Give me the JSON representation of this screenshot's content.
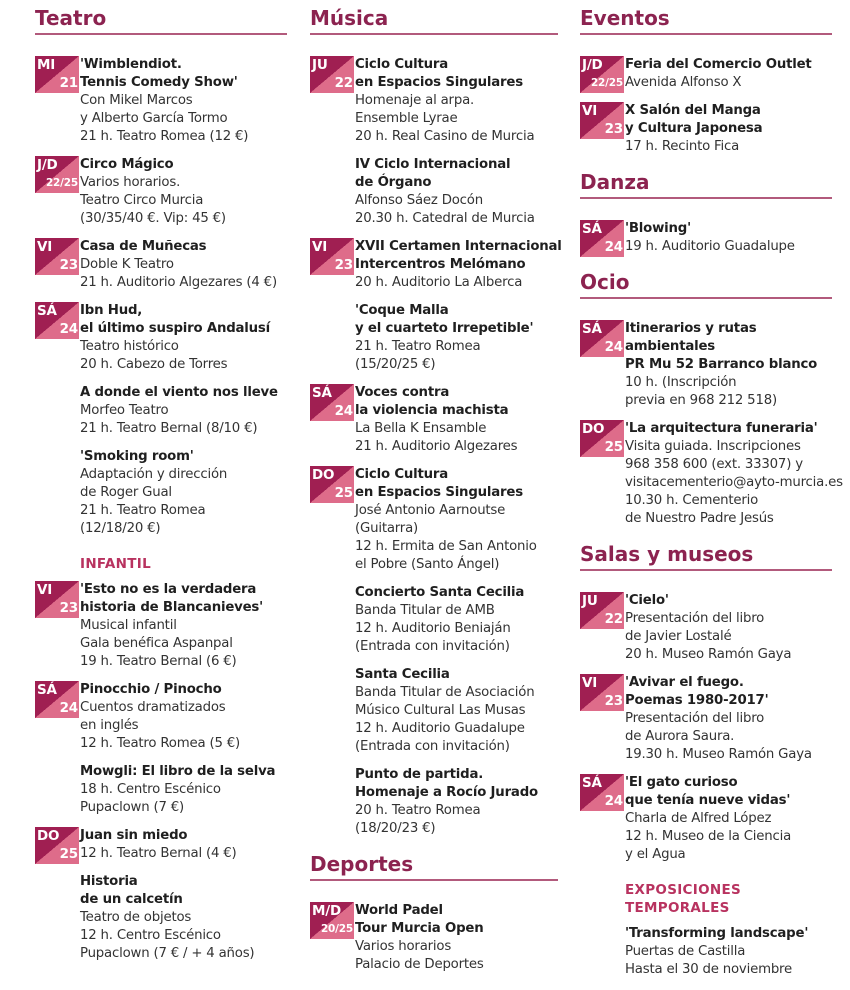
{
  "colors": {
    "heading": "#8c2350",
    "badge_dark": "#a01f52",
    "badge_light": "#de6c8a",
    "subheading": "#b8325f"
  },
  "columns": [
    {
      "sections": [
        {
          "heading": "Teatro",
          "type": "main",
          "items": [
            {
              "badge": {
                "day": "MI",
                "num": "21"
              },
              "title": [
                "'Wimblendiot.",
                "Tennis Comedy Show'"
              ],
              "details": [
                "Con Mikel Marcos",
                "y Alberto García Tormo",
                "21 h. Teatro Romea  (12 €)"
              ]
            },
            {
              "badge": {
                "day": "J/D",
                "num": "22/25"
              },
              "title": [
                "Circo Mágico"
              ],
              "details": [
                "Varios horarios.",
                "Teatro Circo Murcia",
                "(30/35/40 €. Vip: 45 €)"
              ]
            },
            {
              "badge": {
                "day": "VI",
                "num": "23"
              },
              "title": [
                "Casa de Muñecas"
              ],
              "details": [
                "Doble K Teatro",
                "21 h. Auditorio Algezares (4 €)"
              ]
            },
            {
              "badge": {
                "day": "SÁ",
                "num": "24"
              },
              "title": [
                "Ibn Hud,",
                "el último suspiro Andalusí"
              ],
              "details": [
                "Teatro histórico",
                "20 h. Cabezo de Torres"
              ]
            },
            {
              "title": [
                "A donde el viento nos lleve"
              ],
              "details": [
                "Morfeo Teatro",
                "21 h. Teatro Bernal  (8/10 €)"
              ]
            },
            {
              "title": [
                "'Smoking room'"
              ],
              "details": [
                "Adaptación y dirección",
                "de Roger Gual",
                "21 h. Teatro Romea",
                "(12/18/20 €)"
              ]
            }
          ]
        },
        {
          "heading": "INFANTIL",
          "type": "sub",
          "items": [
            {
              "badge": {
                "day": "VI",
                "num": "23"
              },
              "title": [
                "'Esto no es la verdadera",
                "historia de Blancanieves'"
              ],
              "details": [
                "Musical infantil",
                "Gala benéfica Aspanpal",
                "19 h. Teatro Bernal  (6 €)"
              ]
            },
            {
              "badge": {
                "day": "SÁ",
                "num": "24"
              },
              "title": [
                "Pinocchio / Pinocho"
              ],
              "details": [
                "Cuentos dramatizados",
                "en inglés",
                "12 h. Teatro Romea  (5 €)"
              ]
            },
            {
              "title": [
                "Mowgli: El libro de la selva"
              ],
              "details": [
                "18 h. Centro Escénico",
                "Pupaclown  (7 €)"
              ]
            },
            {
              "badge": {
                "day": "DO",
                "num": "25"
              },
              "title": [
                "Juan sin miedo"
              ],
              "details": [
                "12 h. Teatro Bernal  (4 €)"
              ]
            },
            {
              "title": [
                "Historia",
                "de un calcetín"
              ],
              "details": [
                "Teatro de objetos",
                "12 h. Centro Escénico",
                "Pupaclown  (7 € / + 4 años)"
              ]
            }
          ]
        }
      ]
    },
    {
      "sections": [
        {
          "heading": "Música",
          "type": "main",
          "items": [
            {
              "badge": {
                "day": "JU",
                "num": "22"
              },
              "title": [
                "Ciclo Cultura",
                "en Espacios Singulares"
              ],
              "details": [
                "Homenaje al arpa.",
                "Ensemble Lyrae",
                "20 h. Real Casino de Murcia"
              ]
            },
            {
              "title": [
                "IV Ciclo Internacional",
                "de Órgano"
              ],
              "details": [
                "Alfonso Sáez Docón",
                "20.30 h. Catedral de Murcia"
              ]
            },
            {
              "badge": {
                "day": "VI",
                "num": "23"
              },
              "title": [
                "XVII Certamen Internacional",
                "Intercentros Melómano"
              ],
              "details": [
                "20 h. Auditorio La Alberca"
              ]
            },
            {
              "title": [
                "'Coque Malla",
                "y el cuarteto Irrepetible'"
              ],
              "details": [
                "21 h. Teatro Romea",
                "(15/20/25 €)"
              ]
            },
            {
              "badge": {
                "day": "SÁ",
                "num": "24"
              },
              "title": [
                "Voces contra",
                "la violencia machista"
              ],
              "details": [
                "La Bella K Ensamble",
                "21 h. Auditorio Algezares"
              ]
            },
            {
              "badge": {
                "day": "DO",
                "num": "25"
              },
              "title": [
                "Ciclo Cultura",
                "en Espacios Singulares"
              ],
              "details": [
                "José Antonio Aarnoutse",
                "(Guitarra)",
                "12 h. Ermita de San Antonio",
                "el Pobre (Santo Ángel)"
              ]
            },
            {
              "title": [
                "Concierto Santa Cecilia"
              ],
              "details": [
                "Banda Titular de AMB",
                "12 h. Auditorio Beniaján",
                "(Entrada con invitación)"
              ]
            },
            {
              "title": [
                "Santa Cecilia"
              ],
              "details": [
                "Banda Titular de Asociación",
                "Músico Cultural Las Musas",
                "12 h. Auditorio Guadalupe",
                "(Entrada con invitación)"
              ]
            },
            {
              "title": [
                "Punto de partida.",
                "Homenaje a Rocío Jurado"
              ],
              "details": [
                "20 h. Teatro Romea",
                "(18/20/23 €)"
              ]
            }
          ]
        },
        {
          "heading": "Deportes",
          "type": "main",
          "items": [
            {
              "badge": {
                "day": "M/D",
                "num": "20/25"
              },
              "title": [
                "World Padel",
                "Tour Murcia Open"
              ],
              "details": [
                "Varios horarios",
                "Palacio de Deportes"
              ]
            }
          ]
        }
      ]
    },
    {
      "sections": [
        {
          "heading": "Eventos",
          "type": "main",
          "items": [
            {
              "badge": {
                "day": "J/D",
                "num": "22/25"
              },
              "title": [
                "Feria del Comercio Outlet"
              ],
              "details": [
                "Avenida Alfonso X"
              ]
            },
            {
              "badge": {
                "day": "VI",
                "num": "23"
              },
              "title": [
                "X Salón del Manga",
                "y Cultura Japonesa"
              ],
              "details": [
                "17 h. Recinto Fica"
              ]
            }
          ]
        },
        {
          "heading": "Danza",
          "type": "main",
          "items": [
            {
              "badge": {
                "day": "SÁ",
                "num": "24"
              },
              "title": [
                "'Blowing'"
              ],
              "details": [
                "19 h. Auditorio Guadalupe"
              ]
            }
          ]
        },
        {
          "heading": "Ocio",
          "type": "main",
          "items": [
            {
              "badge": {
                "day": "SÁ",
                "num": "24"
              },
              "title": [
                "Itinerarios y rutas",
                "ambientales",
                "PR Mu 52  Barranco blanco"
              ],
              "details": [
                "10 h. (Inscripción",
                "previa en 968 212 518)"
              ]
            },
            {
              "badge": {
                "day": "DO",
                "num": "25"
              },
              "title": [
                "'La arquitectura funeraria'"
              ],
              "details": [
                "Visita guiada. Inscripciones",
                "968 358 600 (ext. 33307) y",
                "visitacementerio@ayto-murcia.es",
                "10.30 h. Cementerio",
                "de Nuestro Padre Jesús"
              ]
            }
          ]
        },
        {
          "heading": "Salas y museos",
          "type": "main",
          "items": [
            {
              "badge": {
                "day": "JU",
                "num": "22"
              },
              "title": [
                "'Cielo'"
              ],
              "details": [
                "Presentación del libro",
                "de Javier Lostalé",
                "20 h. Museo Ramón Gaya"
              ]
            },
            {
              "badge": {
                "day": "VI",
                "num": "23"
              },
              "title": [
                "'Avivar el fuego.",
                "Poemas 1980-2017'"
              ],
              "details": [
                "Presentación del libro",
                "de Aurora Saura.",
                "19.30 h. Museo Ramón Gaya"
              ]
            },
            {
              "badge": {
                "day": "SÁ",
                "num": "24"
              },
              "title": [
                "'El gato curioso",
                "que tenía nueve vidas'"
              ],
              "details": [
                "Charla de  Alfred López",
                "12 h. Museo de la Ciencia",
                "y el Agua"
              ]
            }
          ]
        },
        {
          "heading": "EXPOSICIONES TEMPORALES",
          "type": "sub",
          "items": [
            {
              "title": [
                "'Transforming landscape'"
              ],
              "details": [
                "Puertas de Castilla",
                "Hasta el 30 de noviembre"
              ]
            }
          ]
        }
      ]
    }
  ]
}
